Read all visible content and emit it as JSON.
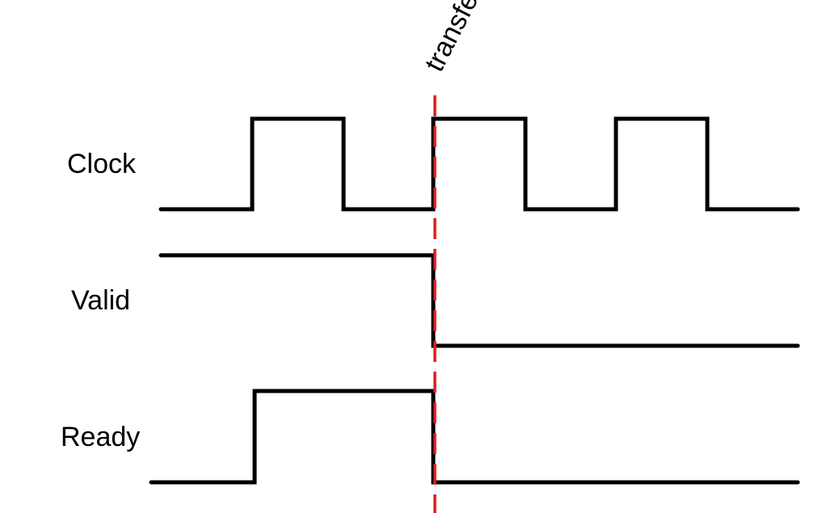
{
  "diagram": {
    "type": "timing-diagram",
    "marker": {
      "label": "transfer",
      "color": "#e31a1c",
      "style": "dashed"
    },
    "signals": [
      {
        "name": "Clock",
        "color": "#000000",
        "levels": [
          0,
          1,
          0,
          1,
          0,
          1,
          0
        ]
      },
      {
        "name": "Valid",
        "color": "#000000",
        "levels": [
          1,
          1,
          1,
          1,
          0,
          0,
          0
        ]
      },
      {
        "name": "Ready",
        "color": "#000000",
        "levels": [
          0,
          1,
          1,
          1,
          0,
          0,
          0
        ]
      }
    ]
  }
}
